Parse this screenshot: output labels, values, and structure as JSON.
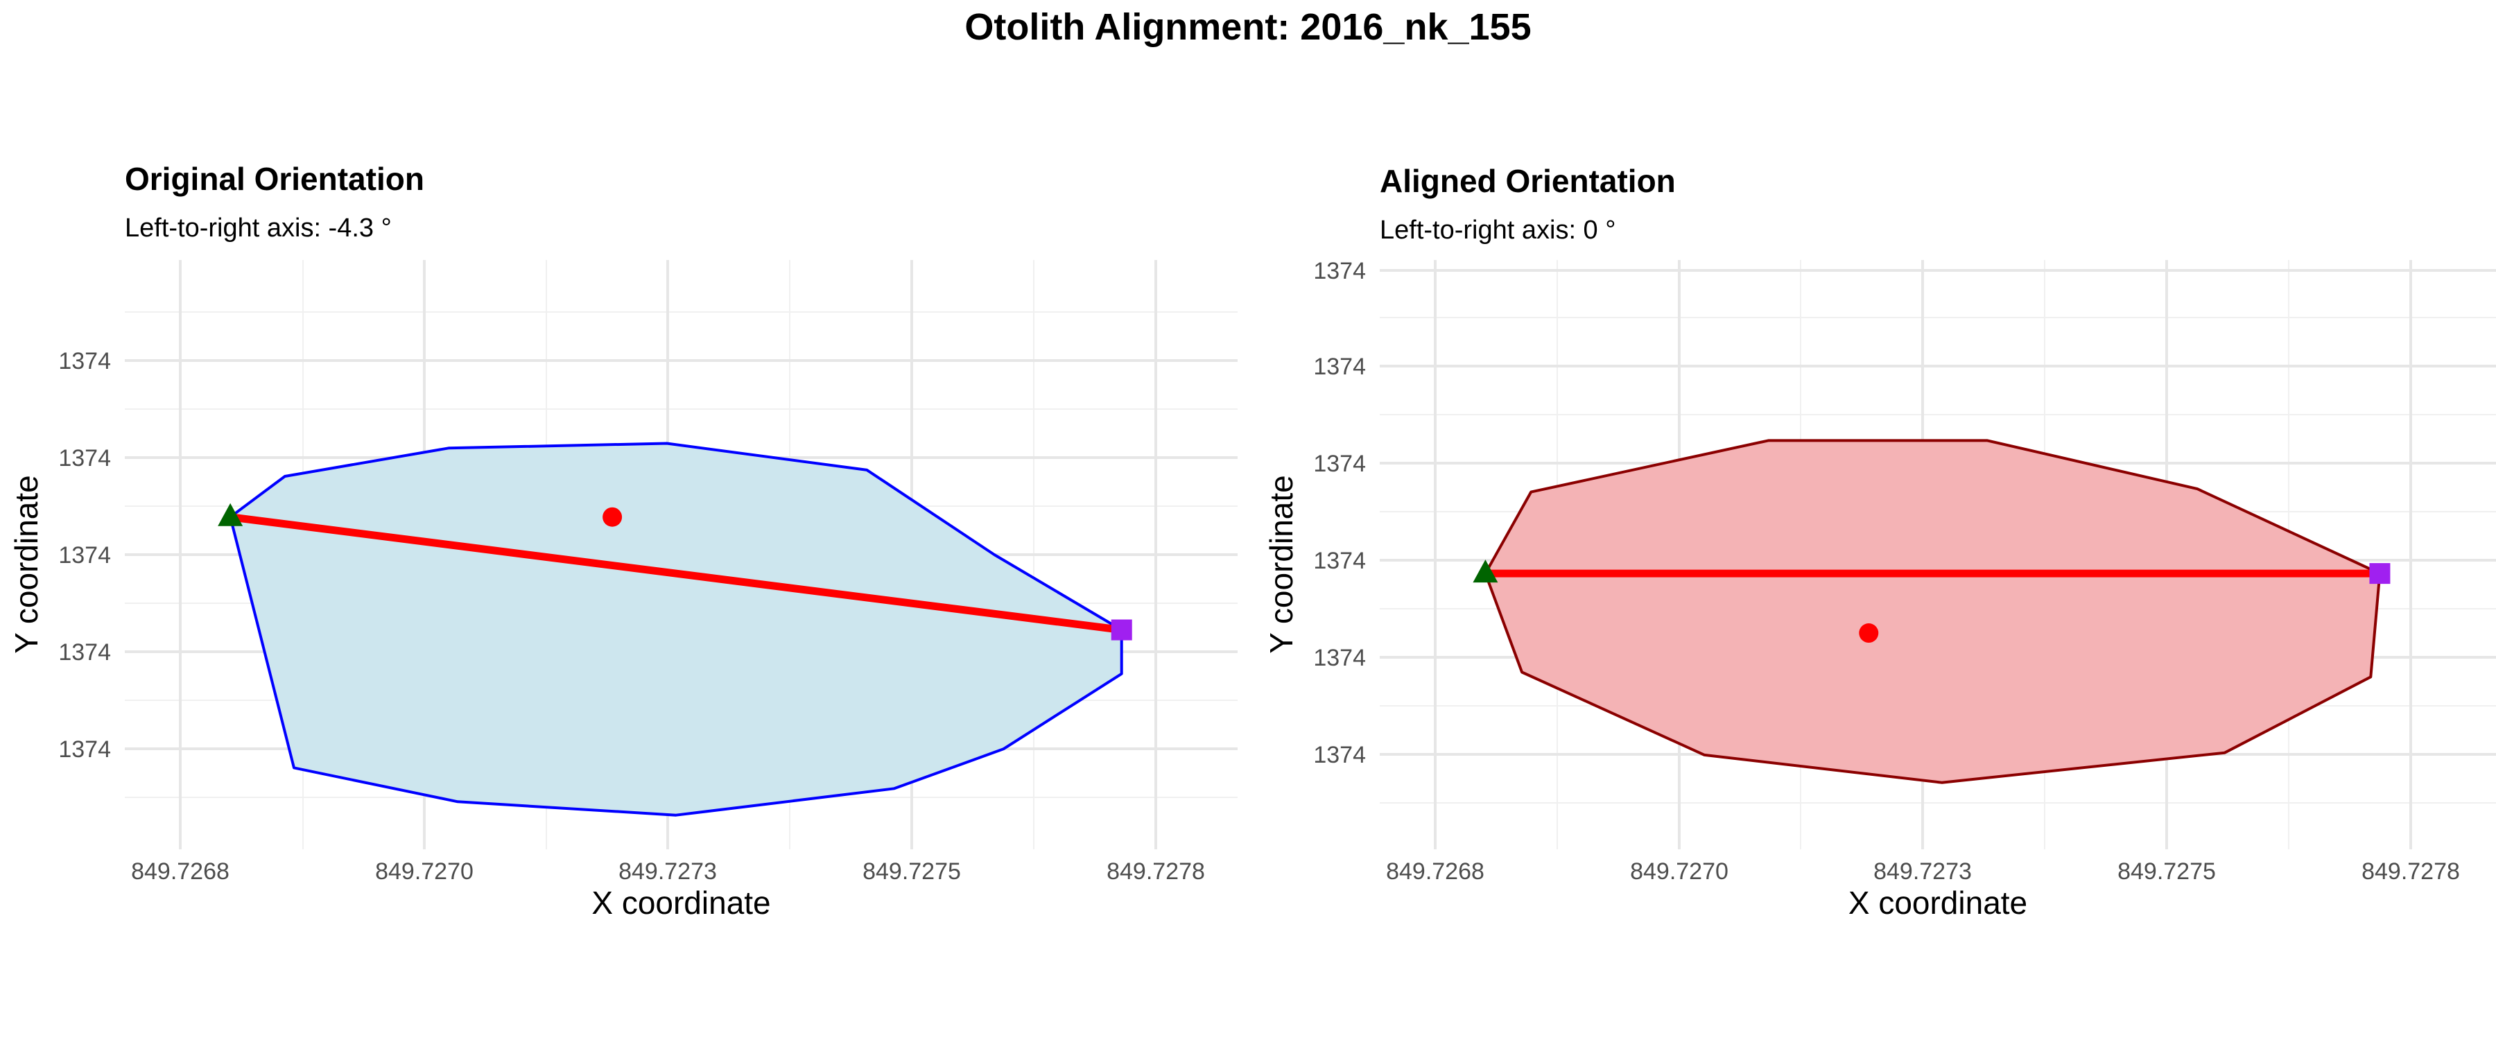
{
  "title": "Otolith Alignment: 2016_nk_155",
  "chart_data": [
    {
      "type": "polygon",
      "title": "Original Orientation",
      "subtitle": "Left-to-right axis: -4.3 °",
      "xlabel": "X coordinate",
      "ylabel": "Y coordinate",
      "x_tick_labels": [
        "849.7268",
        "849.7270",
        "849.7273",
        "849.7275",
        "849.7278"
      ],
      "y_tick_labels": [
        "1374",
        "1374",
        "1374",
        "1374",
        "1374"
      ],
      "grid": true,
      "colors": {
        "fill": "#cde6ee",
        "outline": "#0000ff",
        "axis_line": "#ff0000",
        "centroid": "#ff0000",
        "left_marker": "#006400",
        "right_marker": "#a020f0"
      },
      "outline": [
        [
          849.72679,
          1374.5
        ],
        [
          849.72685,
          1374.37
        ],
        [
          849.72703,
          1374.28
        ],
        [
          849.72727,
          1374.265
        ],
        [
          849.72749,
          1374.35
        ],
        [
          849.72763,
          1374.62
        ],
        [
          849.72777,
          1374.86
        ],
        [
          849.72777,
          1375.0
        ],
        [
          849.72764,
          1375.24
        ],
        [
          849.72752,
          1375.366
        ],
        [
          849.72728,
          1375.451
        ],
        [
          849.72704,
          1375.408
        ],
        [
          849.72686,
          1375.3
        ]
      ],
      "centroid": [
        849.72721,
        1374.5
      ],
      "axis_line": [
        [
          849.72679,
          1374.5
        ],
        [
          849.72777,
          1374.86
        ]
      ],
      "left_point": [
        849.72679,
        1374.5
      ],
      "right_point": [
        849.72777,
        1374.86
      ],
      "xlim": [
        849.726735,
        849.72782
      ],
      "ylim": [
        1373.68,
        1375.56
      ]
    },
    {
      "type": "polygon",
      "title": "Aligned Orientation",
      "subtitle": "Left-to-right axis: 0 °",
      "xlabel": "X coordinate",
      "ylabel": "Y coordinate",
      "x_tick_labels": [
        "849.7268",
        "849.7270",
        "849.7273",
        "849.7275",
        "849.7278"
      ],
      "y_tick_labels": [
        "1374",
        "1374",
        "1374",
        "1374",
        "1374"
      ],
      "grid": true,
      "colors": {
        "fill": "#f4b3b5",
        "outline": "#8b0000",
        "axis_line": "#ff0000",
        "centroid": "#ff0000",
        "left_marker": "#006400",
        "right_marker": "#a020f0"
      },
      "outline": [
        [
          849.72679,
          1374.68
        ],
        [
          849.72684,
          1374.42
        ],
        [
          849.7271,
          1374.256
        ],
        [
          849.72734,
          1374.256
        ],
        [
          849.72757,
          1374.41
        ],
        [
          849.72777,
          1374.68
        ],
        [
          849.72776,
          1375.01
        ],
        [
          849.7276,
          1375.252
        ],
        [
          849.72729,
          1375.347
        ],
        [
          849.72703,
          1375.259
        ],
        [
          849.72683,
          1374.995
        ]
      ],
      "centroid": [
        849.72721,
        1374.87
      ],
      "axis_line": [
        [
          849.72679,
          1374.68
        ],
        [
          849.72777,
          1374.68
        ]
      ],
      "left_point": [
        849.72679,
        1374.68
      ],
      "right_point": [
        849.72777,
        1374.68
      ],
      "xlim": [
        849.726735,
        849.72782
      ],
      "ylim": [
        1373.68,
        1375.56
      ]
    }
  ]
}
